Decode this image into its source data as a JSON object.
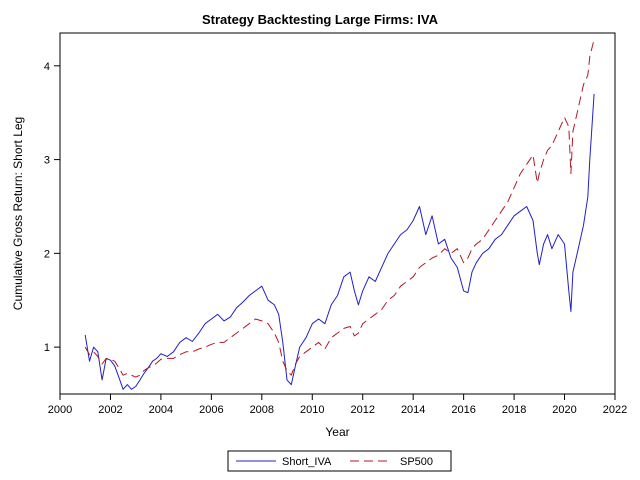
{
  "chart_data": {
    "type": "line",
    "title": "Strategy Backtesting Large Firms: IVA",
    "xlabel": "Year",
    "ylabel": "Cumulative Gross Return: Short Leg",
    "xlim": [
      2000,
      2022
    ],
    "ylim": [
      0.5,
      4.35
    ],
    "x_ticks": [
      2000,
      2002,
      2004,
      2006,
      2008,
      2010,
      2012,
      2014,
      2016,
      2018,
      2020,
      2022
    ],
    "y_ticks": [
      1,
      2,
      3,
      4
    ],
    "legend_position": "bottom",
    "colors": {
      "Short_IVA": "#2020c8",
      "SP500": "#b01828"
    },
    "series": [
      {
        "name": "Short_IVA",
        "style": "solid",
        "x": [
          2001.0,
          2001.17,
          2001.33,
          2001.5,
          2001.67,
          2001.83,
          2002.0,
          2002.17,
          2002.33,
          2002.5,
          2002.67,
          2002.83,
          2003.0,
          2003.17,
          2003.33,
          2003.5,
          2003.67,
          2003.83,
          2004.0,
          2004.25,
          2004.5,
          2004.75,
          2005.0,
          2005.25,
          2005.5,
          2005.75,
          2006.0,
          2006.25,
          2006.5,
          2006.75,
          2007.0,
          2007.25,
          2007.5,
          2007.75,
          2008.0,
          2008.25,
          2008.5,
          2008.67,
          2008.83,
          2009.0,
          2009.17,
          2009.33,
          2009.5,
          2009.75,
          2010.0,
          2010.25,
          2010.5,
          2010.75,
          2011.0,
          2011.25,
          2011.5,
          2011.67,
          2011.83,
          2012.0,
          2012.25,
          2012.5,
          2012.75,
          2013.0,
          2013.25,
          2013.5,
          2013.75,
          2014.0,
          2014.25,
          2014.5,
          2014.75,
          2015.0,
          2015.25,
          2015.5,
          2015.75,
          2016.0,
          2016.17,
          2016.33,
          2016.5,
          2016.75,
          2017.0,
          2017.25,
          2017.5,
          2017.75,
          2018.0,
          2018.25,
          2018.5,
          2018.75,
          2018.92,
          2019.0,
          2019.17,
          2019.33,
          2019.5,
          2019.75,
          2020.0,
          2020.17,
          2020.25,
          2020.33,
          2020.5,
          2020.75,
          2020.92,
          2021.0,
          2021.17
        ],
        "y": [
          1.13,
          0.85,
          1.0,
          0.95,
          0.65,
          0.88,
          0.86,
          0.8,
          0.68,
          0.55,
          0.6,
          0.55,
          0.58,
          0.65,
          0.72,
          0.78,
          0.85,
          0.88,
          0.93,
          0.9,
          0.95,
          1.05,
          1.1,
          1.06,
          1.15,
          1.25,
          1.3,
          1.35,
          1.28,
          1.32,
          1.42,
          1.48,
          1.55,
          1.6,
          1.65,
          1.5,
          1.45,
          1.35,
          1.05,
          0.65,
          0.6,
          0.8,
          1.0,
          1.1,
          1.25,
          1.3,
          1.25,
          1.45,
          1.55,
          1.75,
          1.8,
          1.6,
          1.45,
          1.6,
          1.75,
          1.7,
          1.85,
          2.0,
          2.1,
          2.2,
          2.25,
          2.35,
          2.5,
          2.2,
          2.4,
          2.1,
          2.15,
          1.95,
          1.85,
          1.6,
          1.58,
          1.8,
          1.9,
          2.0,
          2.05,
          2.15,
          2.2,
          2.3,
          2.4,
          2.45,
          2.5,
          2.35,
          2.0,
          1.88,
          2.1,
          2.2,
          2.05,
          2.2,
          2.1,
          1.6,
          1.38,
          1.8,
          2.0,
          2.3,
          2.6,
          3.0,
          3.7
        ]
      },
      {
        "name": "SP500",
        "style": "dashed",
        "x": [
          2001.0,
          2001.17,
          2001.33,
          2001.5,
          2001.67,
          2001.83,
          2002.0,
          2002.17,
          2002.33,
          2002.5,
          2002.67,
          2002.83,
          2003.0,
          2003.17,
          2003.33,
          2003.5,
          2003.67,
          2003.83,
          2004.0,
          2004.25,
          2004.5,
          2004.75,
          2005.0,
          2005.25,
          2005.5,
          2005.75,
          2006.0,
          2006.25,
          2006.5,
          2006.75,
          2007.0,
          2007.25,
          2007.5,
          2007.75,
          2008.0,
          2008.25,
          2008.5,
          2008.67,
          2008.83,
          2009.0,
          2009.17,
          2009.33,
          2009.5,
          2009.75,
          2010.0,
          2010.25,
          2010.5,
          2010.75,
          2011.0,
          2011.25,
          2011.5,
          2011.67,
          2011.83,
          2012.0,
          2012.25,
          2012.5,
          2012.75,
          2013.0,
          2013.25,
          2013.5,
          2013.75,
          2014.0,
          2014.25,
          2014.5,
          2014.75,
          2015.0,
          2015.25,
          2015.5,
          2015.75,
          2016.0,
          2016.17,
          2016.33,
          2016.5,
          2016.75,
          2017.0,
          2017.25,
          2017.5,
          2017.75,
          2018.0,
          2018.25,
          2018.5,
          2018.75,
          2018.92,
          2019.0,
          2019.17,
          2019.33,
          2019.5,
          2019.75,
          2020.0,
          2020.17,
          2020.25,
          2020.33,
          2020.5,
          2020.75,
          2020.92,
          2021.0,
          2021.17
        ],
        "y": [
          1.0,
          0.92,
          0.95,
          0.9,
          0.82,
          0.88,
          0.87,
          0.85,
          0.78,
          0.7,
          0.72,
          0.7,
          0.68,
          0.7,
          0.75,
          0.78,
          0.8,
          0.83,
          0.87,
          0.88,
          0.88,
          0.92,
          0.95,
          0.95,
          0.98,
          1.0,
          1.03,
          1.05,
          1.05,
          1.1,
          1.15,
          1.2,
          1.25,
          1.3,
          1.28,
          1.25,
          1.15,
          1.05,
          0.85,
          0.75,
          0.7,
          0.82,
          0.9,
          0.95,
          1.0,
          1.05,
          0.98,
          1.1,
          1.15,
          1.2,
          1.22,
          1.12,
          1.15,
          1.25,
          1.3,
          1.35,
          1.4,
          1.5,
          1.55,
          1.65,
          1.7,
          1.75,
          1.85,
          1.9,
          1.95,
          1.98,
          2.05,
          2.0,
          2.05,
          1.9,
          1.95,
          2.05,
          2.1,
          2.15,
          2.25,
          2.35,
          2.45,
          2.55,
          2.7,
          2.85,
          2.95,
          3.05,
          2.75,
          2.85,
          3.0,
          3.1,
          3.15,
          3.3,
          3.45,
          3.35,
          2.85,
          3.3,
          3.5,
          3.8,
          3.9,
          4.1,
          4.28
        ]
      }
    ]
  }
}
